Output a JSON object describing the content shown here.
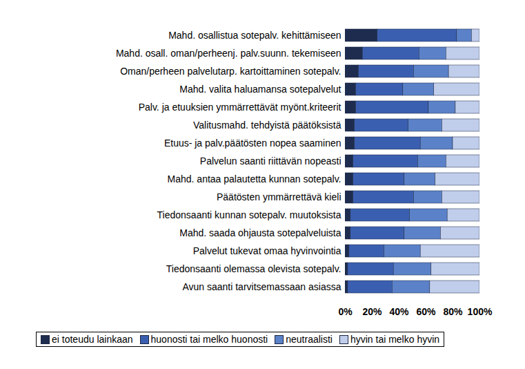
{
  "chart_data": {
    "type": "bar",
    "orientation": "horizontal",
    "stacked": true,
    "legend": "bottom",
    "categories": [
      "Mahd. osallistua sotepalv. kehittämiseen",
      "Mahd. osall. oman/perheenj. palv.suunn. tekemiseen",
      "Oman/perheen palvelutarp. kartoittaminen sotepalv.",
      "Mahd. valita haluamansa sotepalvelut",
      "Palv. ja etuuksien ymmärrettävät myönt.kriteerit",
      "Valitusmahd. tehdyistä päätöksistä",
      "Etuus- ja palv.päätösten nopea saaminen",
      "Palvelun saanti riittävän nopeasti",
      "Mahd. antaa palautetta kunnan sotepalv.",
      "Päätösten ymmärrettävä kieli",
      "Tiedonsaanti kunnan sotepalv. muutoksista",
      "Mahd. saada ohjausta sotepalveluista",
      "Palvelut tukevat omaa hyvinvointia",
      "Tiedonsaanti olemassa olevista sotepalv.",
      "Avun saanti tarvitsemassaan asiassa"
    ],
    "series": [
      {
        "name": "ei toteudu lainkaan",
        "color": "#1e2d4f",
        "values": [
          24,
          13,
          10,
          8,
          8,
          7,
          7,
          6,
          6,
          6,
          4,
          4,
          3,
          2,
          2
        ]
      },
      {
        "name": "huonosti tai melko huonosti",
        "color": "#3b5fb0",
        "values": [
          59,
          42,
          41,
          35,
          54,
          40,
          49,
          48,
          38,
          45,
          44,
          40,
          26,
          34,
          33
        ]
      },
      {
        "name": "neutraalisti",
        "color": "#5b82c8",
        "values": [
          11,
          20,
          26,
          23,
          20,
          25,
          24,
          21,
          23,
          21,
          28,
          27,
          27,
          28,
          28
        ]
      },
      {
        "name": "hyvin tai melko hyvin",
        "color": "#c0cdeb",
        "values": [
          6,
          25,
          23,
          34,
          18,
          28,
          20,
          25,
          33,
          28,
          24,
          29,
          44,
          36,
          37
        ]
      }
    ],
    "xlim": [
      0,
      100
    ],
    "xticks": [
      {
        "value": 0,
        "label": "0%"
      },
      {
        "value": 20,
        "label": "20%"
      },
      {
        "value": 40,
        "label": "40%"
      },
      {
        "value": 60,
        "label": "60%"
      },
      {
        "value": 80,
        "label": "80%"
      },
      {
        "value": 100,
        "label": "100%"
      }
    ]
  }
}
